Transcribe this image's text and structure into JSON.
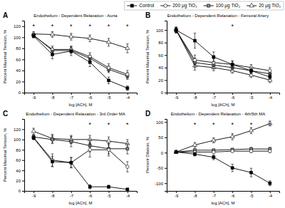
{
  "chart_data": [
    {
      "type": "line",
      "panel_label": "A",
      "title": "Endothelium - Dependent Relaxation - Aorta",
      "x_label": "log [ACh], M",
      "y_label": "Percent Maximal Tension, %",
      "x": [
        -9,
        -8,
        -7,
        -6,
        -5,
        -4
      ],
      "xlim": [
        -9.5,
        -3.5
      ],
      "xticks": [
        -9,
        -8,
        -7,
        -6,
        -5,
        -4
      ],
      "ylim": [
        0,
        130
      ],
      "yticks": [
        0,
        20,
        40,
        60,
        80,
        100,
        120
      ],
      "series": [
        {
          "marker": "square",
          "color": "#000000",
          "values": [
            102,
            69,
            75,
            55,
            22,
            8
          ],
          "errors": [
            3,
            8,
            8,
            8,
            6,
            4
          ]
        },
        {
          "marker": "circle",
          "color": "#ffffff",
          "values": [
            103,
            78,
            78,
            65,
            45,
            33
          ],
          "errors": [
            3,
            6,
            6,
            7,
            7,
            7
          ]
        },
        {
          "marker": "square",
          "color": "#888888",
          "values": [
            104,
            76,
            76,
            62,
            42,
            30
          ],
          "errors": [
            3,
            5,
            5,
            6,
            6,
            6
          ]
        },
        {
          "marker": "triangle",
          "color": "#ffffff",
          "values": [
            106,
            105,
            101,
            98,
            91,
            80
          ],
          "errors": [
            4,
            5,
            6,
            6,
            7,
            8
          ]
        }
      ],
      "annotations": [
        {
          "text": "*",
          "x": -9
        },
        {
          "text": "*",
          "x": -8
        },
        {
          "text": "*",
          "x": -7
        },
        {
          "text": "*",
          "x": -6
        },
        {
          "text": "*",
          "x": -5
        },
        {
          "text": "*",
          "x": -4
        }
      ]
    },
    {
      "type": "line",
      "panel_label": "B",
      "title": "Endothelium - Dependent Relaxation - Femoral Artery",
      "x_label": "log [ACh], M",
      "y_label": "Percent Maximal Tension, %",
      "x": [
        -9,
        -8,
        -7,
        -6,
        -5,
        -4
      ],
      "xlim": [
        -9.5,
        -3.5
      ],
      "xticks": [
        -9,
        -8,
        -7,
        -6,
        -5,
        -4
      ],
      "ylim": [
        0,
        115
      ],
      "yticks": [
        0,
        20,
        40,
        60,
        80,
        100
      ],
      "legend": "top",
      "series": [
        {
          "name": "Control",
          "marker": "square",
          "color": "#000000",
          "values": [
            100,
            83,
            57,
            45,
            35,
            25
          ],
          "errors": [
            5,
            12,
            8,
            6,
            5,
            4
          ]
        },
        {
          "name": "200 μg TiO₂",
          "marker": "circle",
          "color": "#ffffff",
          "values": [
            100,
            52,
            48,
            45,
            40,
            35
          ],
          "errors": [
            4,
            8,
            6,
            5,
            5,
            5
          ]
        },
        {
          "name": "100 μg TiO₂",
          "marker": "square",
          "color": "#888888",
          "values": [
            100,
            48,
            44,
            40,
            35,
            30
          ],
          "errors": [
            3,
            7,
            5,
            4,
            4,
            4
          ]
        },
        {
          "name": "20 μg TiO₂",
          "marker": "triangle",
          "color": "#ffffff",
          "values": [
            100,
            43,
            40,
            35,
            28,
            20
          ],
          "errors": [
            4,
            7,
            5,
            4,
            4,
            4
          ]
        }
      ],
      "annotations": [
        {
          "text": "*",
          "x": -6
        }
      ]
    },
    {
      "type": "line",
      "panel_label": "C",
      "title": "Endothelium - Dependent Relaxation - 3rd Order MA",
      "x_label": "log [ACh], M",
      "y_label": "Percent Maximal Tension, %",
      "x": [
        -9,
        -8,
        -7,
        -6,
        -5,
        -4
      ],
      "xlim": [
        -9.5,
        -3.5
      ],
      "xticks": [
        -9,
        -8,
        -7,
        -6,
        -5,
        -4
      ],
      "ylim": [
        0,
        140
      ],
      "yticks": [
        0,
        20,
        40,
        60,
        80,
        100,
        120
      ],
      "series": [
        {
          "marker": "square",
          "color": "#000000",
          "values": [
            103,
            57,
            55,
            8,
            8,
            3
          ],
          "errors": [
            3,
            10,
            10,
            4,
            3,
            2
          ]
        },
        {
          "marker": "circle",
          "color": "#ffffff",
          "values": [
            104,
            60,
            55,
            80,
            80,
            47
          ],
          "errors": [
            4,
            12,
            10,
            14,
            12,
            10
          ]
        },
        {
          "marker": "square",
          "color": "#888888",
          "values": [
            105,
            100,
            96,
            88,
            82,
            82
          ],
          "errors": [
            4,
            8,
            10,
            12,
            10,
            10
          ]
        },
        {
          "marker": "triangle",
          "color": "#ffffff",
          "values": [
            116,
            102,
            100,
            100,
            97,
            92
          ],
          "errors": [
            6,
            8,
            8,
            8,
            8,
            8
          ]
        }
      ],
      "annotations": [
        {
          "text": "*",
          "x": -6
        },
        {
          "text": "*",
          "x": -5
        },
        {
          "text": "*",
          "x": -4
        }
      ]
    },
    {
      "type": "line",
      "panel_label": "D",
      "title": "Endothelium - Dependent Relaxation - 4th/5th MA",
      "x_label": "log [ACh], M",
      "y_label": "Percent Dilation, %",
      "x": [
        -9,
        -8,
        -7,
        -6,
        -5,
        -4
      ],
      "xlim": [
        -9.5,
        -3.5
      ],
      "xticks": [
        -9,
        -8,
        -7,
        -6,
        -5,
        -4
      ],
      "ylim": [
        -125,
        110
      ],
      "yticks": [
        -100,
        -50,
        0,
        50,
        100
      ],
      "series": [
        {
          "marker": "square",
          "color": "#000000",
          "values": [
            2,
            -5,
            -15,
            -50,
            -65,
            -100
          ],
          "errors": [
            3,
            6,
            8,
            12,
            14,
            8
          ]
        },
        {
          "marker": "circle",
          "color": "#ffffff",
          "values": [
            2,
            2,
            2,
            5,
            5,
            5
          ],
          "errors": [
            3,
            4,
            3,
            4,
            5,
            5
          ]
        },
        {
          "marker": "square",
          "color": "#888888",
          "values": [
            2,
            8,
            8,
            10,
            12,
            12
          ],
          "errors": [
            3,
            4,
            3,
            4,
            5,
            5
          ]
        },
        {
          "marker": "triangle",
          "color": "#ffffff",
          "values": [
            2,
            25,
            40,
            52,
            72,
            95
          ],
          "errors": [
            4,
            8,
            8,
            10,
            10,
            8
          ]
        }
      ],
      "annotations": [
        {
          "text": "*",
          "x": -8
        },
        {
          "text": "*",
          "x": -7
        },
        {
          "text": "*",
          "x": -6
        },
        {
          "text": "*",
          "x": -5
        },
        {
          "text": "*",
          "x": -4
        }
      ]
    }
  ]
}
